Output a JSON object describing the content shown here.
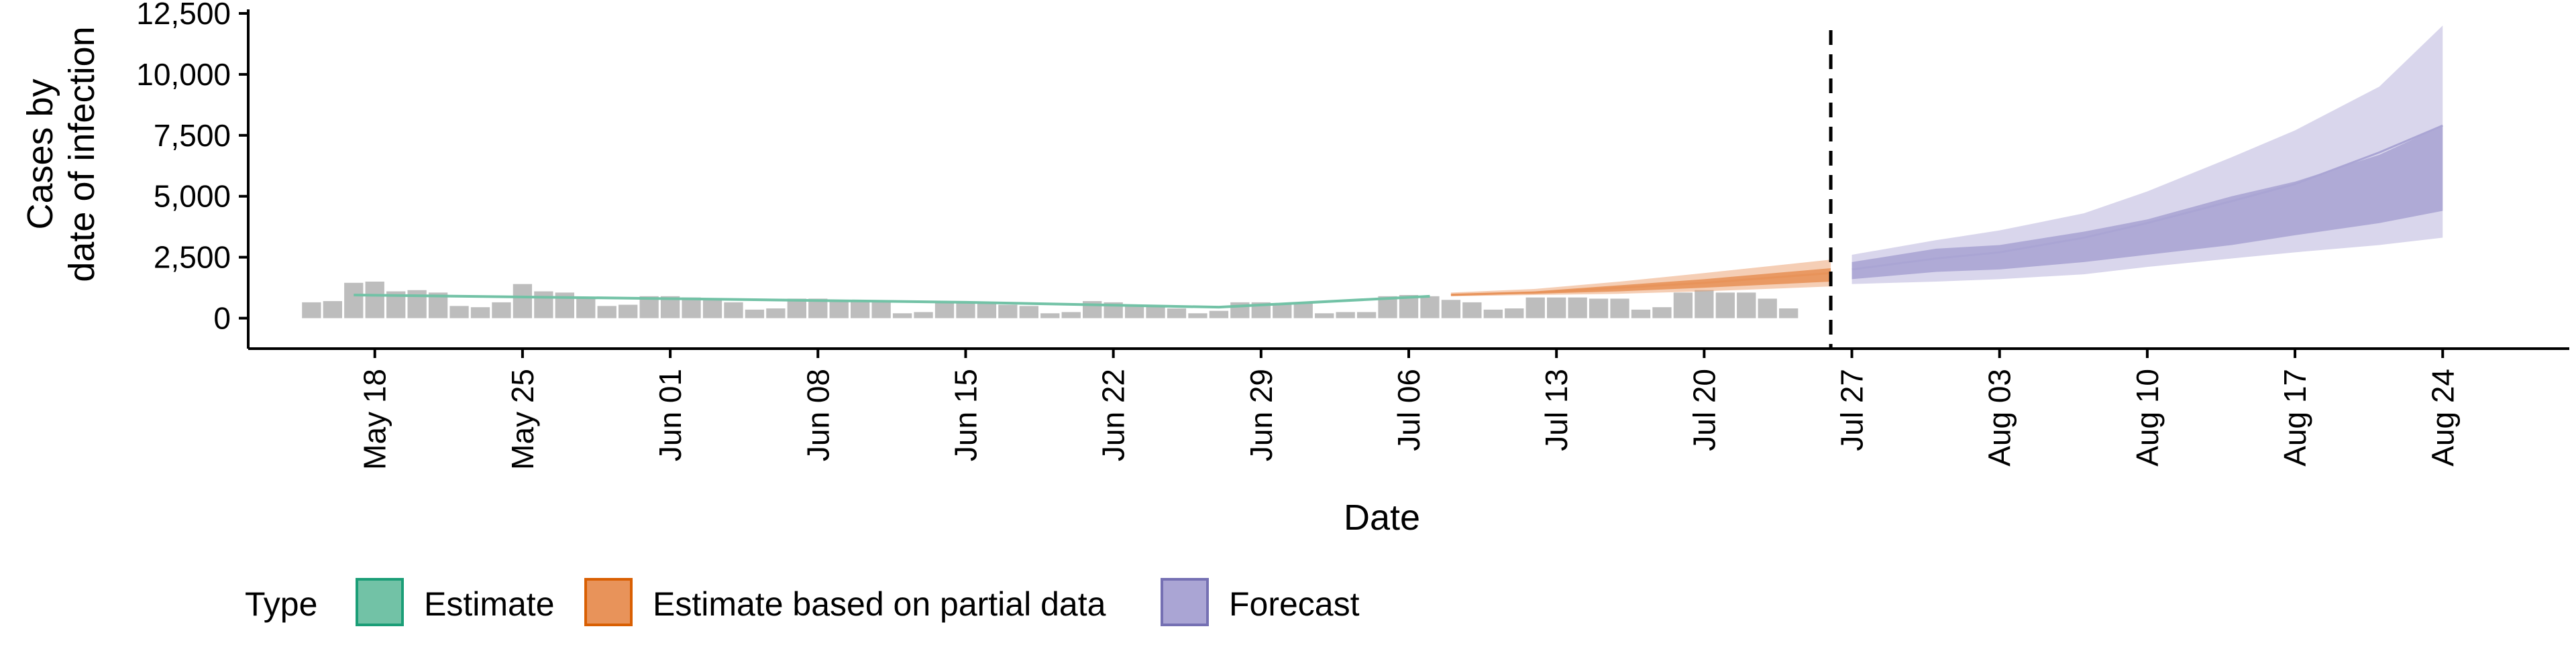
{
  "chart_data": {
    "type": "area",
    "xlabel": "Date",
    "ylabel_lines": [
      "Cases by",
      "date of infection"
    ],
    "x_range": [
      "2020-05-12",
      "2020-08-30"
    ],
    "ylim": [
      -1250,
      12500
    ],
    "y_ticks": [
      0,
      2500,
      5000,
      7500,
      10000,
      12500
    ],
    "y_tick_labels": [
      "0",
      "2,500",
      "5,000",
      "7,500",
      "10,000",
      "12,500"
    ],
    "x_ticks": [
      "2020-05-18",
      "2020-05-25",
      "2020-06-01",
      "2020-06-08",
      "2020-06-15",
      "2020-06-22",
      "2020-06-29",
      "2020-07-06",
      "2020-07-13",
      "2020-07-20",
      "2020-07-27",
      "2020-08-03",
      "2020-08-10",
      "2020-08-17",
      "2020-08-24"
    ],
    "x_tick_labels": [
      "May 18",
      "May 25",
      "Jun 01",
      "Jun 08",
      "Jun 15",
      "Jun 22",
      "Jun 29",
      "Jul 06",
      "Jul 13",
      "Jul 20",
      "Jul 27",
      "Aug 03",
      "Aug 10",
      "Aug 17",
      "Aug 24"
    ],
    "grid": false,
    "forecast_date": "2020-07-26",
    "bars": {
      "color": "#bdbdbd",
      "start_date": "2020-05-15",
      "values": [
        650,
        700,
        1450,
        1500,
        1100,
        1150,
        1050,
        500,
        450,
        650,
        1400,
        1100,
        1050,
        850,
        500,
        550,
        900,
        900,
        850,
        750,
        650,
        350,
        400,
        800,
        800,
        750,
        700,
        650,
        200,
        250,
        700,
        650,
        600,
        550,
        500,
        200,
        250,
        700,
        650,
        550,
        500,
        400,
        200,
        300,
        650,
        650,
        600,
        600,
        200,
        250,
        250,
        900,
        950,
        900,
        750,
        650,
        350,
        400,
        850,
        850,
        850,
        800,
        800,
        350,
        450,
        1050,
        1150,
        1050,
        1050,
        800,
        400
      ]
    },
    "series": [
      {
        "name": "Estimate",
        "color": "#1b9e77",
        "fill": "#72c2a6",
        "points": [
          [
            "2020-05-17",
            950
          ],
          [
            "2020-06-01",
            800
          ],
          [
            "2020-06-15",
            650
          ],
          [
            "2020-06-27",
            450
          ],
          [
            "2020-07-07",
            900
          ]
        ]
      },
      {
        "name": "Estimate based on partial data",
        "color": "#d95f02",
        "fill": "#e8935a",
        "points": [
          [
            "2020-07-08",
            950
          ],
          [
            "2020-07-12",
            1050
          ],
          [
            "2020-07-16",
            1250
          ],
          [
            "2020-07-20",
            1450
          ],
          [
            "2020-07-26",
            1850
          ]
        ],
        "outer_band": [
          [
            900,
            1050
          ],
          [
            950,
            1200
          ],
          [
            1000,
            1500
          ],
          [
            1100,
            1850
          ],
          [
            1300,
            2400
          ]
        ],
        "inner_band": [
          [
            950,
            1000
          ],
          [
            1000,
            1100
          ],
          [
            1100,
            1350
          ],
          [
            1250,
            1600
          ],
          [
            1500,
            2050
          ]
        ]
      },
      {
        "name": "Forecast",
        "color": "#7570b3",
        "fill": "#aaa5d4",
        "points": [
          [
            "2020-07-27",
            2000
          ],
          [
            "2020-07-31",
            2450
          ],
          [
            "2020-08-03",
            2700
          ],
          [
            "2020-08-07",
            3300
          ],
          [
            "2020-08-10",
            3900
          ],
          [
            "2020-08-14",
            4800
          ],
          [
            "2020-08-17",
            5500
          ],
          [
            "2020-08-21",
            6800
          ],
          [
            "2020-08-24",
            7900
          ]
        ],
        "outer_band": [
          [
            1400,
            2600
          ],
          [
            1500,
            3200
          ],
          [
            1600,
            3600
          ],
          [
            1800,
            4300
          ],
          [
            2100,
            5200
          ],
          [
            2450,
            6600
          ],
          [
            2700,
            7700
          ],
          [
            3000,
            9500
          ],
          [
            3300,
            12000
          ]
        ],
        "inner_band": [
          [
            1600,
            2300
          ],
          [
            1900,
            2850
          ],
          [
            2000,
            3000
          ],
          [
            2300,
            3550
          ],
          [
            2600,
            4050
          ],
          [
            3000,
            5000
          ],
          [
            3400,
            5600
          ],
          [
            3900,
            6700
          ],
          [
            4400,
            7900
          ]
        ]
      }
    ],
    "legend": {
      "title": "Type",
      "position": "bottom",
      "items": [
        "Estimate",
        "Estimate based on partial data",
        "Forecast"
      ]
    }
  }
}
